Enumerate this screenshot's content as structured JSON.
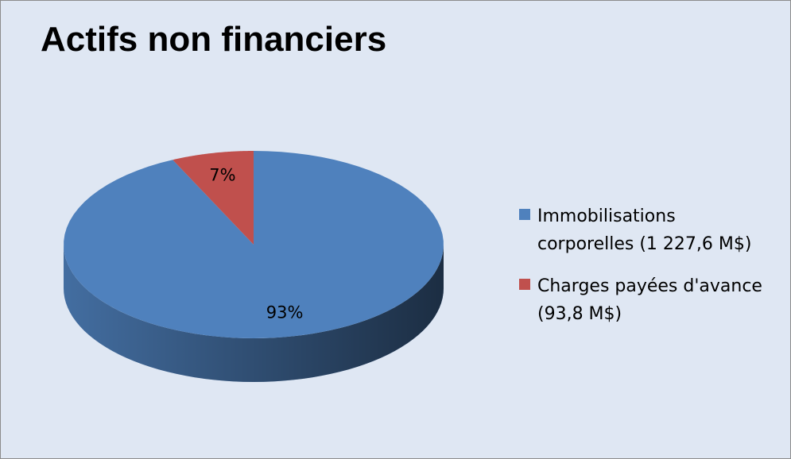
{
  "chart_data": {
    "type": "pie",
    "title": "Actifs non financiers",
    "categories": [
      "Immobilisations corporelles (1 227,6 M$)",
      "Charges payées d'avance (93,8 M$)"
    ],
    "values": [
      93,
      7
    ],
    "value_labels": [
      "93%",
      "7%"
    ],
    "colors": [
      "#4f81bd",
      "#c0504d"
    ],
    "legend": "right"
  }
}
